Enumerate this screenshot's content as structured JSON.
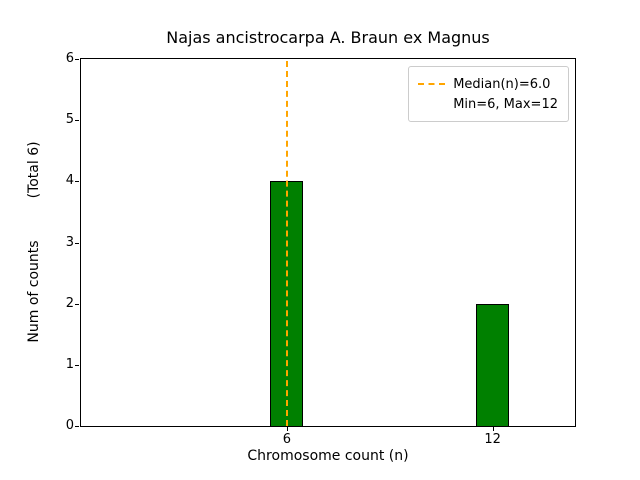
{
  "chart_data": {
    "type": "bar",
    "title": "Najas ancistrocarpa A. Braun ex Magnus",
    "xlabel": "Chromosome count (n)",
    "ylabel": "Num of counts",
    "ylabel_note": "(Total 6)",
    "x": [
      6,
      12
    ],
    "values": [
      4,
      2
    ],
    "xticks": [
      6,
      12
    ],
    "yticks": [
      0,
      1,
      2,
      3,
      4,
      5,
      6
    ],
    "xlim": [
      0,
      14.4
    ],
    "ylim": [
      0,
      6
    ],
    "median": 6.0,
    "min": 6,
    "max": 12,
    "bar_color": "#008000",
    "bar_edge_color": "#000000",
    "median_line_color": "#ffa500",
    "legend_position": "upper right",
    "grid": false,
    "legend": [
      "Median(n)=6.0",
      "Min=6, Max=12"
    ]
  }
}
